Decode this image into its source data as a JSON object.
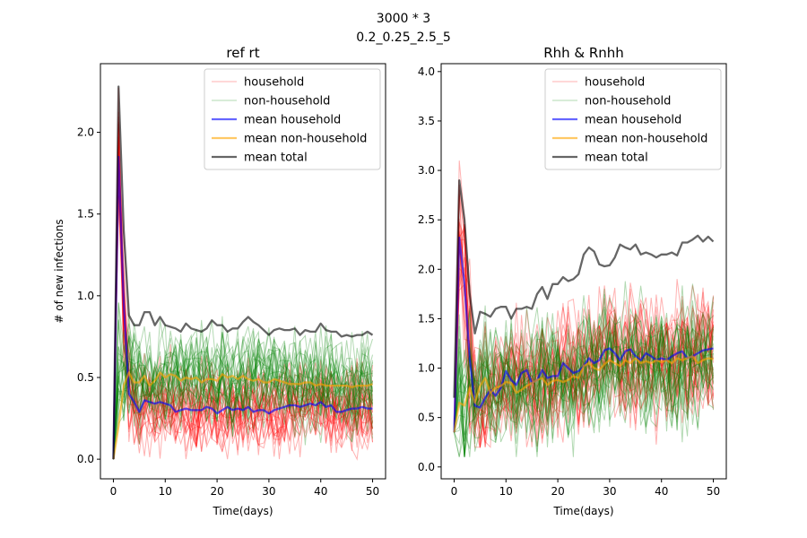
{
  "figure": {
    "suptitle_line1": "3000 * 3",
    "suptitle_line2": "0.2_0.25_2.5_5"
  },
  "chart_data": [
    {
      "type": "line",
      "title": "ref rt",
      "xlabel": "Time(days)",
      "ylabel": "# of new infections",
      "xlim": [
        -2.5,
        52.5
      ],
      "ylim": [
        -0.12,
        2.42
      ],
      "xticks": [
        0,
        10,
        20,
        30,
        40,
        50
      ],
      "yticks": [
        0.0,
        0.5,
        1.0,
        1.5,
        2.0
      ],
      "ytick_labels": [
        "0.0",
        "0.5",
        "1.0",
        "1.5",
        "2.0"
      ],
      "legend_position": "upper right",
      "legend": [
        {
          "label": "household",
          "color": "#ff0000",
          "alpha": 0.3,
          "width": 1
        },
        {
          "label": "non-household",
          "color": "#008000",
          "alpha": 0.3,
          "width": 1
        },
        {
          "label": "mean household",
          "color": "#0000ff",
          "alpha": 0.6,
          "width": 2
        },
        {
          "label": "mean non-household",
          "color": "#ffa500",
          "alpha": 0.6,
          "width": 2
        },
        {
          "label": "mean total",
          "color": "#000000",
          "alpha": 0.6,
          "width": 2
        }
      ],
      "x": [
        0,
        1,
        2,
        3,
        4,
        5,
        6,
        7,
        8,
        9,
        10,
        11,
        12,
        13,
        14,
        15,
        16,
        17,
        18,
        19,
        20,
        21,
        22,
        23,
        24,
        25,
        26,
        27,
        28,
        29,
        30,
        31,
        32,
        33,
        34,
        35,
        36,
        37,
        38,
        39,
        40,
        41,
        42,
        43,
        44,
        45,
        46,
        47,
        48,
        49,
        50
      ],
      "series": [
        {
          "name": "mean household",
          "color": "#0000ff",
          "values": [
            0.0,
            1.85,
            0.95,
            0.4,
            0.35,
            0.29,
            0.36,
            0.35,
            0.34,
            0.35,
            0.34,
            0.33,
            0.29,
            0.3,
            0.31,
            0.3,
            0.3,
            0.3,
            0.32,
            0.31,
            0.28,
            0.3,
            0.32,
            0.3,
            0.31,
            0.3,
            0.32,
            0.29,
            0.3,
            0.3,
            0.28,
            0.3,
            0.31,
            0.32,
            0.33,
            0.33,
            0.32,
            0.33,
            0.34,
            0.33,
            0.35,
            0.32,
            0.33,
            0.29,
            0.29,
            0.3,
            0.31,
            0.31,
            0.32,
            0.31,
            0.31
          ]
        },
        {
          "name": "mean non-household",
          "color": "#ffa500",
          "values": [
            0.0,
            0.2,
            0.45,
            0.53,
            0.47,
            0.47,
            0.51,
            0.45,
            0.48,
            0.53,
            0.5,
            0.52,
            0.51,
            0.48,
            0.5,
            0.49,
            0.5,
            0.47,
            0.49,
            0.49,
            0.48,
            0.52,
            0.5,
            0.51,
            0.49,
            0.51,
            0.49,
            0.48,
            0.49,
            0.47,
            0.47,
            0.49,
            0.48,
            0.47,
            0.46,
            0.46,
            0.46,
            0.47,
            0.47,
            0.45,
            0.46,
            0.45,
            0.45,
            0.45,
            0.45,
            0.45,
            0.44,
            0.45,
            0.45,
            0.45,
            0.46
          ]
        },
        {
          "name": "mean total",
          "color": "#000000",
          "values": [
            0.0,
            2.28,
            1.4,
            0.88,
            0.82,
            0.82,
            0.9,
            0.9,
            0.82,
            0.87,
            0.82,
            0.81,
            0.8,
            0.78,
            0.83,
            0.8,
            0.79,
            0.78,
            0.8,
            0.85,
            0.82,
            0.82,
            0.78,
            0.8,
            0.8,
            0.84,
            0.87,
            0.84,
            0.82,
            0.79,
            0.76,
            0.79,
            0.8,
            0.79,
            0.79,
            0.8,
            0.76,
            0.79,
            0.78,
            0.78,
            0.83,
            0.79,
            0.78,
            0.78,
            0.75,
            0.76,
            0.75,
            0.76,
            0.76,
            0.78,
            0.76
          ]
        }
      ],
      "background_runs": [
        {
          "label": "household",
          "color": "#ff0000",
          "count": 26,
          "base": [
            0.0,
            1.85,
            0.95,
            0.4,
            0.35,
            0.29,
            0.36,
            0.35,
            0.34,
            0.35,
            0.34,
            0.33,
            0.29,
            0.3,
            0.31,
            0.3,
            0.3,
            0.3,
            0.32,
            0.31,
            0.28,
            0.3,
            0.32,
            0.3,
            0.31,
            0.3,
            0.32,
            0.29,
            0.3,
            0.3,
            0.28,
            0.3,
            0.31,
            0.32,
            0.33,
            0.33,
            0.32,
            0.33,
            0.34,
            0.33,
            0.35,
            0.32,
            0.33,
            0.29,
            0.29,
            0.3,
            0.31,
            0.31,
            0.32,
            0.31,
            0.31
          ],
          "spread": 0.16,
          "min": 0.0
        },
        {
          "label": "non-household",
          "color": "#008000",
          "count": 26,
          "base": [
            0.0,
            0.6,
            0.45,
            0.53,
            0.47,
            0.47,
            0.51,
            0.45,
            0.48,
            0.53,
            0.5,
            0.52,
            0.51,
            0.48,
            0.5,
            0.49,
            0.5,
            0.47,
            0.49,
            0.49,
            0.48,
            0.52,
            0.5,
            0.51,
            0.49,
            0.51,
            0.49,
            0.48,
            0.49,
            0.47,
            0.47,
            0.49,
            0.48,
            0.47,
            0.46,
            0.46,
            0.46,
            0.47,
            0.47,
            0.45,
            0.46,
            0.45,
            0.45,
            0.45,
            0.45,
            0.45,
            0.44,
            0.45,
            0.45,
            0.45,
            0.46
          ],
          "spread": 0.18,
          "min": 0.0
        }
      ]
    },
    {
      "type": "line",
      "title": "Rhh & Rnhh",
      "xlabel": "Time(days)",
      "ylabel": "",
      "xlim": [
        -2.5,
        52.5
      ],
      "ylim": [
        -0.12,
        4.08
      ],
      "xticks": [
        0,
        10,
        20,
        30,
        40,
        50
      ],
      "yticks": [
        0.0,
        0.5,
        1.0,
        1.5,
        2.0,
        2.5,
        3.0,
        3.5,
        4.0
      ],
      "ytick_labels": [
        "0.0",
        "0.5",
        "1.0",
        "1.5",
        "2.0",
        "2.5",
        "3.0",
        "3.5",
        "4.0"
      ],
      "legend_position": "upper right",
      "legend": [
        {
          "label": "household",
          "color": "#ff0000",
          "alpha": 0.3,
          "width": 1
        },
        {
          "label": "non-household",
          "color": "#008000",
          "alpha": 0.3,
          "width": 1
        },
        {
          "label": "mean household",
          "color": "#0000ff",
          "alpha": 0.6,
          "width": 2
        },
        {
          "label": "mean non-household",
          "color": "#ffa500",
          "alpha": 0.6,
          "width": 2
        },
        {
          "label": "mean total",
          "color": "#000000",
          "alpha": 0.6,
          "width": 2
        }
      ],
      "x": [
        0,
        1,
        2,
        3,
        4,
        5,
        6,
        7,
        8,
        9,
        10,
        11,
        12,
        13,
        14,
        15,
        16,
        17,
        18,
        19,
        20,
        21,
        22,
        23,
        24,
        25,
        26,
        27,
        28,
        29,
        30,
        31,
        32,
        33,
        34,
        35,
        36,
        37,
        38,
        39,
        40,
        41,
        42,
        43,
        44,
        45,
        46,
        47,
        48,
        49,
        50
      ],
      "series": [
        {
          "name": "mean household",
          "color": "#0000ff",
          "values": [
            0.35,
            2.32,
            1.85,
            1.1,
            0.62,
            0.6,
            0.7,
            0.78,
            0.72,
            0.8,
            0.97,
            0.88,
            0.83,
            0.95,
            0.98,
            0.85,
            0.88,
            0.98,
            0.9,
            0.92,
            0.92,
            1.05,
            1.0,
            0.95,
            0.97,
            1.02,
            1.1,
            1.05,
            1.08,
            1.18,
            1.2,
            1.15,
            1.08,
            1.17,
            1.19,
            1.12,
            1.08,
            1.15,
            1.12,
            1.08,
            1.1,
            1.08,
            1.12,
            1.15,
            1.17,
            1.1,
            1.12,
            1.15,
            1.18,
            1.19,
            1.2
          ]
        },
        {
          "name": "mean non-household",
          "color": "#ffa500",
          "values": [
            0.35,
            0.65,
            0.62,
            0.8,
            0.65,
            0.82,
            0.9,
            0.75,
            0.8,
            0.82,
            0.86,
            0.85,
            0.75,
            0.78,
            0.82,
            0.85,
            0.88,
            0.9,
            0.83,
            0.87,
            0.88,
            0.86,
            0.88,
            0.92,
            0.9,
            1.02,
            1.05,
            1.0,
            0.98,
            1.04,
            1.08,
            1.05,
            1.02,
            1.08,
            1.05,
            1.1,
            1.05,
            1.07,
            1.05,
            1.08,
            1.06,
            1.08,
            1.05,
            1.1,
            1.08,
            1.1,
            1.12,
            1.05,
            1.08,
            1.1,
            1.09
          ]
        },
        {
          "name": "mean total",
          "color": "#000000",
          "values": [
            0.7,
            2.9,
            2.5,
            1.75,
            1.35,
            1.57,
            1.55,
            1.52,
            1.6,
            1.62,
            1.62,
            1.5,
            1.6,
            1.6,
            1.62,
            1.6,
            1.75,
            1.82,
            1.7,
            1.85,
            1.85,
            1.92,
            1.88,
            1.9,
            1.95,
            2.15,
            2.22,
            2.18,
            2.05,
            2.03,
            2.04,
            2.12,
            2.25,
            2.22,
            2.2,
            2.25,
            2.15,
            2.17,
            2.15,
            2.12,
            2.15,
            2.15,
            2.17,
            2.14,
            2.27,
            2.27,
            2.3,
            2.34,
            2.28,
            2.33,
            2.28
          ]
        }
      ],
      "background_runs": [
        {
          "label": "household",
          "color": "#ff0000",
          "count": 26,
          "base": [
            0.35,
            2.32,
            1.85,
            1.1,
            0.62,
            0.6,
            0.7,
            0.78,
            0.72,
            0.8,
            0.97,
            0.88,
            0.83,
            0.95,
            0.98,
            0.85,
            0.88,
            0.98,
            0.9,
            0.92,
            0.92,
            1.05,
            1.0,
            0.95,
            0.97,
            1.02,
            1.1,
            1.05,
            1.08,
            1.18,
            1.2,
            1.15,
            1.08,
            1.17,
            1.19,
            1.12,
            1.08,
            1.15,
            1.12,
            1.08,
            1.1,
            1.08,
            1.12,
            1.15,
            1.17,
            1.1,
            1.12,
            1.15,
            1.18,
            1.19,
            1.2
          ],
          "spread": 0.38,
          "min": 0.2
        },
        {
          "label": "non-household",
          "color": "#008000",
          "count": 26,
          "base": [
            0.35,
            0.65,
            0.62,
            0.8,
            0.65,
            0.82,
            0.9,
            0.75,
            0.8,
            0.82,
            0.86,
            0.85,
            0.75,
            0.78,
            0.82,
            0.85,
            0.88,
            0.9,
            0.83,
            0.87,
            0.88,
            0.86,
            0.88,
            0.92,
            0.9,
            1.02,
            1.05,
            1.0,
            0.98,
            1.04,
            1.08,
            1.05,
            1.02,
            1.08,
            1.05,
            1.1,
            1.05,
            1.07,
            1.05,
            1.08,
            1.06,
            1.08,
            1.05,
            1.1,
            1.08,
            1.1,
            1.12,
            1.05,
            1.08,
            1.1,
            1.09
          ],
          "spread": 0.38,
          "min": 0.1
        }
      ]
    }
  ]
}
